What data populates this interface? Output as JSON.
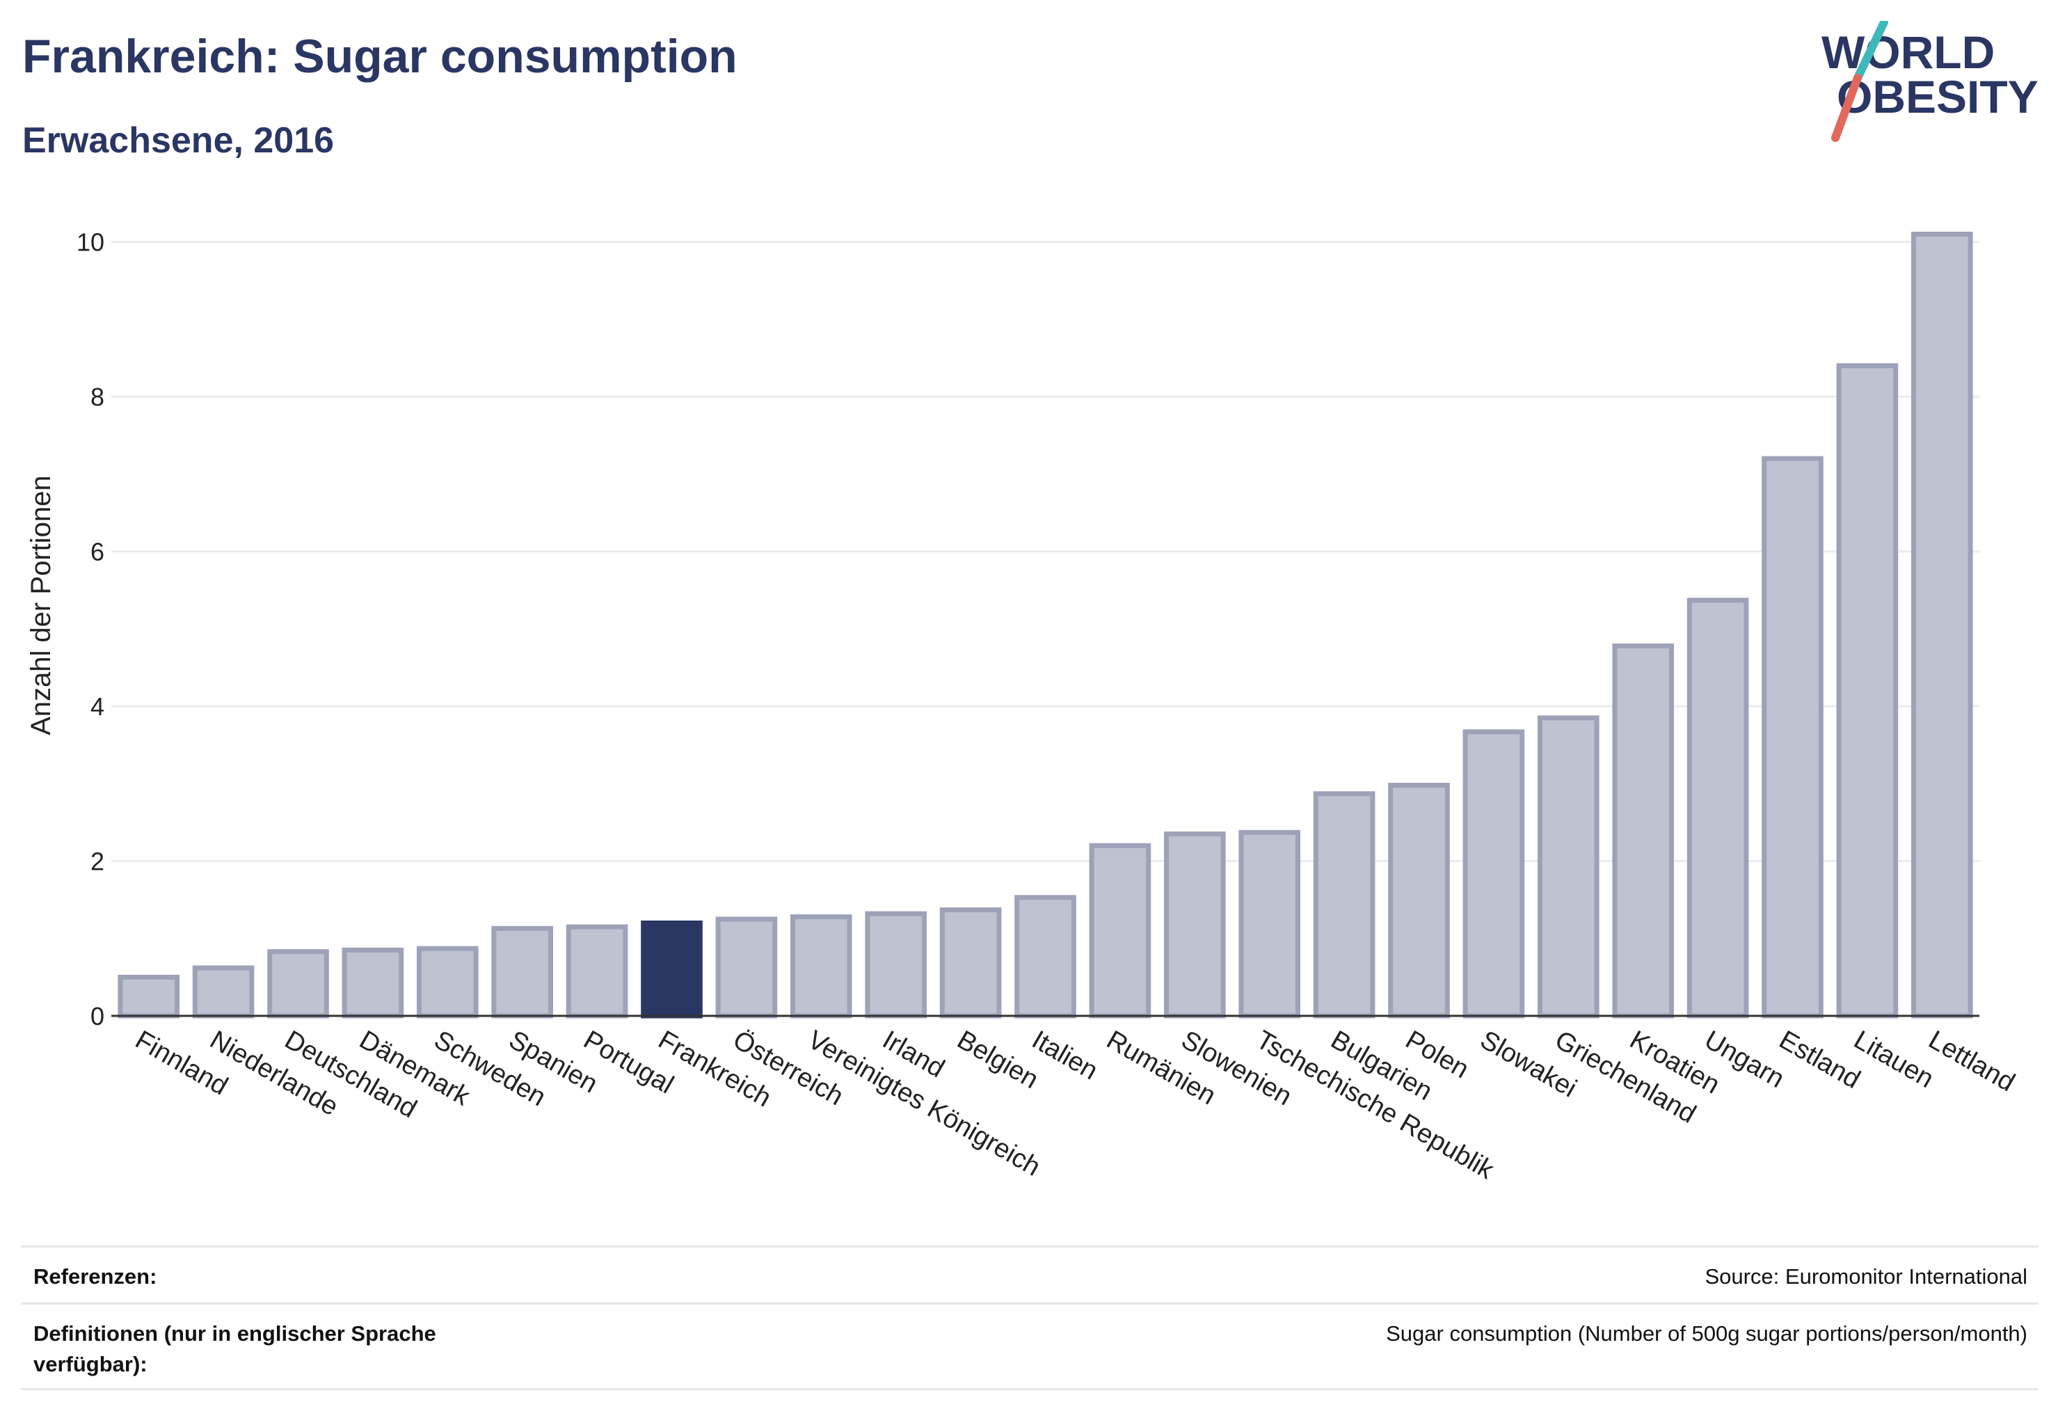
{
  "header": {
    "title": "Frankreich: Sugar consumption",
    "subtitle": "Erwachsene, 2016"
  },
  "logo": {
    "line1": "WORLD",
    "line2": "OBESITY",
    "accent_teal": "#3fb8bd",
    "accent_red": "#e2685c"
  },
  "colors": {
    "bar": "#bfc2d1",
    "bar_border": "#9da2b9",
    "highlight": "#2a3663",
    "grid": "#ebebf0",
    "text": "#2a3663"
  },
  "chart_data": {
    "type": "bar",
    "ylabel": "Anzahl der Portionen",
    "ylim": [
      0,
      10.5
    ],
    "yticks": [
      0,
      2,
      4,
      6,
      8,
      10
    ],
    "grid": true,
    "highlight": "Frankreich",
    "categories": [
      "Finnland",
      "Niederlande",
      "Deutschland",
      "Dänemark",
      "Schweden",
      "Spanien",
      "Portugal",
      "Frankreich",
      "Österreich",
      "Vereinigtes Königreich",
      "Irland",
      "Belgien",
      "Italien",
      "Rumänien",
      "Slowenien",
      "Tschechische Republik",
      "Bulgarien",
      "Polen",
      "Slowakei",
      "Griechenland",
      "Kroatien",
      "Ungarn",
      "Estland",
      "Litauen",
      "Lettland"
    ],
    "values": [
      0.5,
      0.62,
      0.83,
      0.85,
      0.87,
      1.13,
      1.15,
      1.2,
      1.25,
      1.28,
      1.32,
      1.37,
      1.53,
      2.2,
      2.35,
      2.37,
      2.87,
      2.98,
      3.67,
      3.85,
      4.78,
      5.37,
      7.2,
      8.4,
      10.1
    ]
  },
  "references": {
    "label": "Referenzen:",
    "value": "Source: Euromonitor International"
  },
  "definitions": {
    "label": "Definitionen (nur in englischer Sprache verfügbar):",
    "value": "Sugar consumption (Number of 500g sugar portions/person/month)"
  }
}
